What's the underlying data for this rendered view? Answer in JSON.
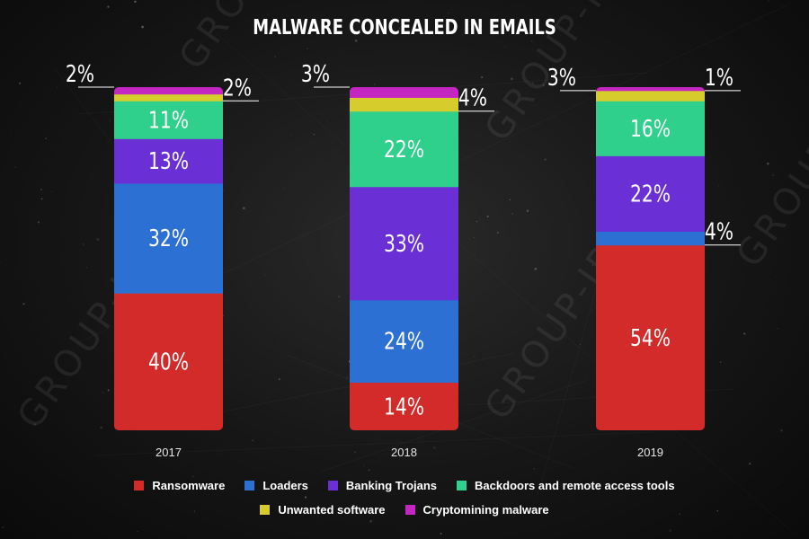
{
  "title": "MALWARE CONCEALED IN EMAILS",
  "watermark": "GROUP-IB",
  "colors": {
    "Ransomware": "#d32a2a",
    "Loaders": "#2d70d4",
    "Banking Trojans": "#6b2fd6",
    "Backdoors and remote access tools": "#2fcf8c",
    "Unwanted software": "#d6cd2d",
    "Cryptomining malware": "#c427c1"
  },
  "legend_rows": [
    [
      "Ransomware",
      "Loaders",
      "Banking Trojans",
      "Backdoors and remote access tools"
    ],
    [
      "Unwanted software",
      "Cryptomining malware"
    ]
  ],
  "chart_data": {
    "type": "bar",
    "stacked": true,
    "title": "MALWARE CONCEALED IN EMAILS",
    "categories": [
      "2017",
      "2018",
      "2019"
    ],
    "unit": "%",
    "series": [
      {
        "name": "Ransomware",
        "values": [
          40,
          14,
          54
        ]
      },
      {
        "name": "Loaders",
        "values": [
          32,
          24,
          4
        ]
      },
      {
        "name": "Banking Trojans",
        "values": [
          13,
          33,
          22
        ]
      },
      {
        "name": "Backdoors and remote access tools",
        "values": [
          11,
          22,
          16
        ]
      },
      {
        "name": "Unwanted software",
        "values": [
          2,
          4,
          3
        ]
      },
      {
        "name": "Cryptomining malware",
        "values": [
          2,
          3,
          1
        ]
      }
    ],
    "data_labels": [
      [
        "40%",
        "32%",
        "13%",
        "11%",
        "2%",
        "2%"
      ],
      [
        "14%",
        "24%",
        "33%",
        "22%",
        "4%",
        "3%"
      ],
      [
        "54%",
        "4%",
        "22%",
        "16%",
        "3%",
        "1%"
      ]
    ],
    "legend_position": "bottom",
    "grid": false
  }
}
